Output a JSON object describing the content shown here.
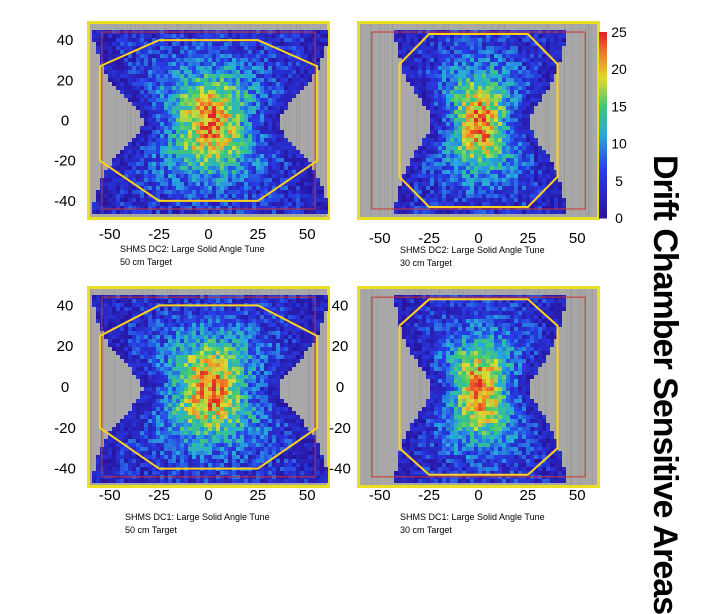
{
  "slide_title": "Drift Chamber Sensitive Areas",
  "colors": {
    "frame": "#d8c830",
    "border": "#e8e020",
    "octagon": "#ffd21a",
    "acceptance": "#cc3333",
    "background": "#a8a8a8"
  },
  "colorbar": {
    "ticks": [
      "25",
      "20",
      "15",
      "10",
      "5",
      "0"
    ],
    "range": [
      0,
      25
    ]
  },
  "chart_data": [
    {
      "type": "heatmap",
      "title": "SHMS DC2: Large Solid Angle Tune",
      "subtitle": "50 cm Target",
      "xticks": [
        "-50",
        "-25",
        "0",
        "25",
        "50"
      ],
      "yticks": [
        "40",
        "20",
        "0",
        "-20",
        "-40"
      ],
      "xlim": [
        -60,
        60
      ],
      "ylim": [
        -48,
        48
      ],
      "octagon": [
        [
          -25,
          40
        ],
        [
          25,
          40
        ],
        [
          55,
          27
        ],
        [
          55,
          -20
        ],
        [
          25,
          -40
        ],
        [
          -25,
          -40
        ],
        [
          -55,
          -20
        ],
        [
          -55,
          27
        ]
      ]
    },
    {
      "type": "heatmap",
      "title": "SHMS DC2: Large Solid Angle Tune",
      "subtitle": "30 cm Target",
      "xticks": [
        "-50",
        "-25",
        "0",
        "25",
        "50"
      ],
      "yticks": [],
      "xlim": [
        -60,
        60
      ],
      "ylim": [
        -48,
        48
      ],
      "octagon": [
        [
          -25,
          43
        ],
        [
          25,
          43
        ],
        [
          40,
          28
        ],
        [
          40,
          -28
        ],
        [
          25,
          -43
        ],
        [
          -25,
          -43
        ],
        [
          -40,
          -28
        ],
        [
          -40,
          28
        ]
      ]
    },
    {
      "type": "heatmap",
      "title": "SHMS DC1: Large Solid Angle Tune",
      "subtitle": "50 cm Target",
      "xticks": [
        "-50",
        "-25",
        "0",
        "25",
        "50"
      ],
      "yticks": [
        "40",
        "20",
        "0",
        "-20",
        "-40"
      ],
      "xlim": [
        -60,
        60
      ],
      "ylim": [
        -48,
        48
      ],
      "octagon": [
        [
          -25,
          40
        ],
        [
          25,
          40
        ],
        [
          55,
          25
        ],
        [
          55,
          -20
        ],
        [
          25,
          -40
        ],
        [
          -25,
          -40
        ],
        [
          -55,
          -20
        ],
        [
          -55,
          25
        ]
      ]
    },
    {
      "type": "heatmap",
      "title": "SHMS DC1: Large Solid Angle Tune",
      "subtitle": "30 cm Target",
      "xticks": [
        "-50",
        "-25",
        "0",
        "25",
        "50"
      ],
      "yticks": [
        "40",
        "20",
        "0",
        "-20",
        "-40"
      ],
      "xlim": [
        -60,
        60
      ],
      "ylim": [
        -48,
        48
      ],
      "octagon": [
        [
          -25,
          43
        ],
        [
          25,
          43
        ],
        [
          40,
          30
        ],
        [
          40,
          -30
        ],
        [
          25,
          -43
        ],
        [
          -25,
          -43
        ],
        [
          -40,
          -30
        ],
        [
          -40,
          30
        ]
      ]
    }
  ]
}
